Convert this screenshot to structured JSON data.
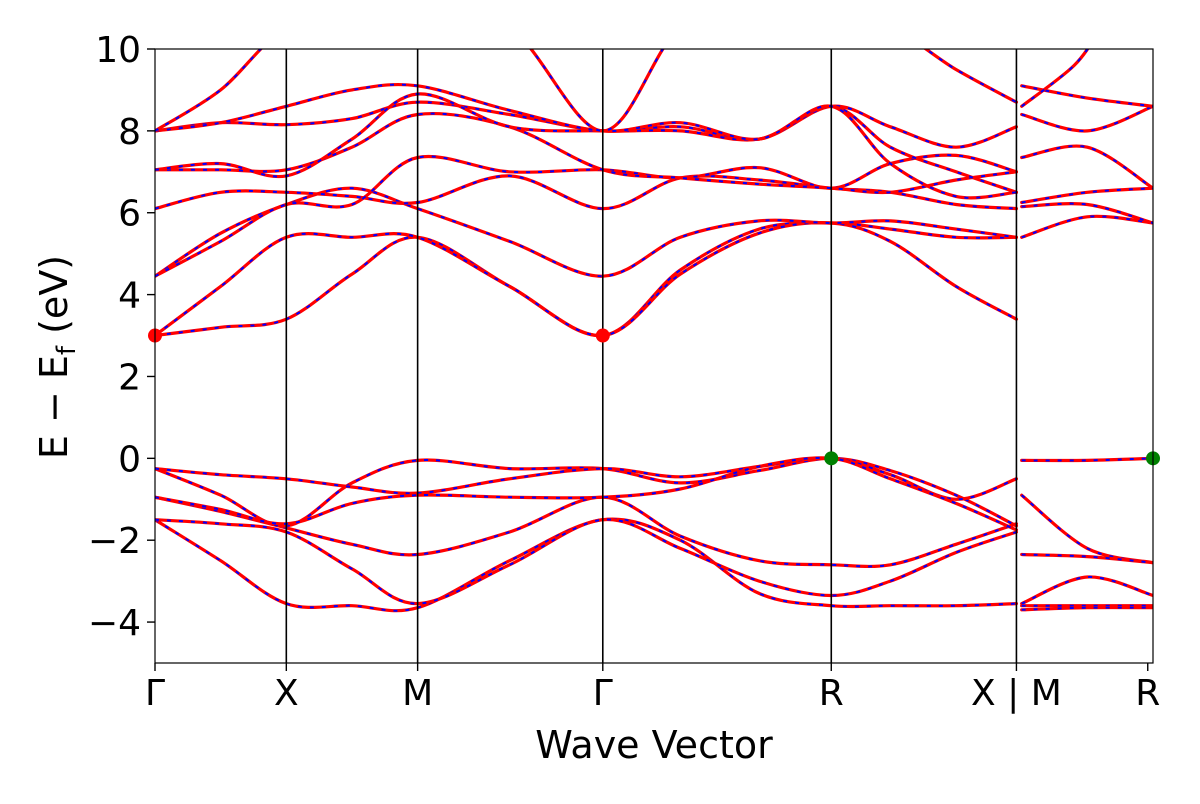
{
  "chart_data": {
    "type": "line",
    "title": "",
    "xlabel": "Wave Vector",
    "ylabel": "E − E",
    "ylabel_sub": "f",
    "ylabel_unit": " (eV)",
    "ylim": [
      -5,
      10
    ],
    "yticks": [
      -4,
      -2,
      0,
      2,
      4,
      6,
      8,
      10
    ],
    "ytick_labels": [
      "−4",
      "−2",
      "0",
      "2",
      "4",
      "6",
      "8",
      "10"
    ],
    "xlim": [
      0,
      7.6
    ],
    "xticks": [
      0,
      1.0,
      2.0,
      3.41,
      5.15,
      6.56,
      7.56
    ],
    "xtick_labels": [
      "Γ",
      "X",
      "M",
      "Γ",
      "R",
      "X | M",
      "R"
    ],
    "kpath_segments": [
      [
        0,
        1.0
      ],
      [
        1.0,
        2.0
      ],
      [
        2.0,
        3.41
      ],
      [
        3.41,
        5.15
      ],
      [
        5.15,
        6.56
      ],
      [
        6.6,
        7.6
      ]
    ],
    "grid": false,
    "legend": "none",
    "colors": {
      "band_main": "#ff0000",
      "band_overlay": "#0000ff",
      "cbm_marker": "#ff0000",
      "vbm_marker": "#008000",
      "axis": "#000000"
    },
    "markers": [
      {
        "name": "CBM",
        "points": [
          [
            0,
            3.0
          ],
          [
            3.41,
            3.0
          ]
        ],
        "color": "#ff0000"
      },
      {
        "name": "VBM",
        "points": [
          [
            5.15,
            0.0
          ],
          [
            7.6,
            0.0
          ]
        ],
        "color": "#008000"
      }
    ],
    "bands": [
      {
        "x": [
          0,
          0.5,
          1.0,
          1.5,
          2.0,
          2.7,
          3.41,
          4.0,
          4.6,
          5.15,
          5.6,
          6.1,
          6.56
        ],
        "y": [
          -1.5,
          -2.5,
          -3.55,
          -3.6,
          -3.65,
          -2.5,
          -1.5,
          -2.0,
          -3.3,
          -3.6,
          -3.6,
          -3.6,
          -3.55
        ]
      },
      {
        "x": [
          0,
          0.5,
          1.0,
          1.5,
          2.0,
          2.7,
          3.41,
          4.0,
          4.6,
          5.15,
          5.6,
          6.1,
          6.56
        ],
        "y": [
          -1.5,
          -1.6,
          -1.8,
          -2.7,
          -3.55,
          -2.6,
          -1.5,
          -2.2,
          -3.0,
          -3.35,
          -3.0,
          -2.3,
          -1.8
        ]
      },
      {
        "x": [
          0,
          0.5,
          1.0,
          1.5,
          2.0,
          2.7,
          3.41,
          4.0,
          4.6,
          5.15,
          5.6,
          6.1,
          6.56
        ],
        "y": [
          -0.95,
          -1.3,
          -1.7,
          -2.1,
          -2.35,
          -1.8,
          -0.95,
          -1.9,
          -2.5,
          -2.6,
          -2.6,
          -2.1,
          -1.6
        ]
      },
      {
        "x": [
          0,
          0.5,
          1.0,
          1.5,
          2.0,
          2.7,
          3.41,
          4.0,
          4.6,
          5.15,
          5.6,
          6.1,
          6.56
        ],
        "y": [
          -0.25,
          -0.9,
          -1.65,
          -0.6,
          -0.05,
          -0.25,
          -0.25,
          -0.6,
          -0.3,
          0.0,
          -0.3,
          -0.9,
          -1.65
        ]
      },
      {
        "x": [
          0,
          0.5,
          1.0,
          1.5,
          2.0,
          2.7,
          3.41,
          4.0,
          4.6,
          5.15,
          5.6,
          6.1,
          6.56
        ],
        "y": [
          -0.25,
          -0.4,
          -0.5,
          -0.7,
          -0.85,
          -0.5,
          -0.25,
          -0.45,
          -0.2,
          0.0,
          -0.4,
          -1.0,
          -0.5
        ]
      },
      {
        "x": [
          0,
          0.5,
          1.0,
          1.5,
          2.0,
          2.7,
          3.41,
          4.0,
          4.6,
          5.15,
          5.6,
          6.1,
          6.56
        ],
        "y": [
          -0.95,
          -1.25,
          -1.6,
          -1.1,
          -0.9,
          -0.95,
          -0.95,
          -0.75,
          -0.2,
          0.0,
          -0.5,
          -1.1,
          -1.75
        ]
      },
      {
        "x": [
          0,
          0.5,
          1.0,
          1.5,
          2.0,
          2.7,
          3.41,
          4.0,
          4.6,
          5.15,
          5.6,
          6.1,
          6.56
        ],
        "y": [
          3.0,
          3.2,
          3.4,
          4.5,
          5.4,
          4.2,
          3.0,
          4.6,
          5.6,
          5.75,
          5.6,
          5.4,
          5.4
        ]
      },
      {
        "x": [
          0,
          0.5,
          1.0,
          1.5,
          2.0,
          2.7,
          3.41,
          4.0,
          4.6,
          5.15,
          5.6,
          6.1,
          6.56
        ],
        "y": [
          3.0,
          4.2,
          5.4,
          5.4,
          5.4,
          4.2,
          3.0,
          4.5,
          5.5,
          5.75,
          5.3,
          4.2,
          3.4
        ]
      },
      {
        "x": [
          0,
          0.5,
          1.0,
          1.5,
          2.0,
          2.7,
          3.41,
          4.0,
          4.6,
          5.15,
          5.6,
          6.1,
          6.56
        ],
        "y": [
          4.45,
          5.5,
          6.2,
          6.6,
          6.1,
          5.3,
          4.45,
          5.4,
          5.8,
          5.75,
          5.8,
          5.6,
          5.4
        ]
      },
      {
        "x": [
          0,
          0.5,
          1.0,
          1.5,
          2.0,
          2.7,
          3.41,
          4.0,
          4.6,
          5.15,
          5.6,
          6.1,
          6.56
        ],
        "y": [
          6.1,
          6.5,
          6.5,
          6.4,
          6.25,
          6.9,
          6.1,
          6.85,
          6.8,
          6.6,
          6.5,
          6.2,
          6.1
        ]
      },
      {
        "x": [
          0,
          0.5,
          1.0,
          1.5,
          2.0,
          2.7,
          3.41,
          4.0,
          4.6,
          5.15,
          5.6,
          6.1,
          6.56
        ],
        "y": [
          4.45,
          5.3,
          6.2,
          6.2,
          7.35,
          7.0,
          7.05,
          6.85,
          7.1,
          6.6,
          7.2,
          7.4,
          7.0
        ]
      },
      {
        "x": [
          0,
          0.5,
          1.0,
          1.5,
          2.0,
          2.7,
          3.41,
          4.0,
          4.6,
          5.15,
          5.6,
          6.1,
          6.56
        ],
        "y": [
          7.05,
          7.05,
          7.05,
          7.6,
          8.4,
          8.1,
          7.05,
          6.85,
          6.7,
          6.6,
          6.5,
          6.8,
          7.0
        ]
      },
      {
        "x": [
          0,
          0.5,
          1.0,
          1.5,
          2.0,
          2.7,
          3.41,
          4.0,
          4.6,
          5.15,
          5.6,
          6.1,
          6.56
        ],
        "y": [
          8.0,
          8.2,
          8.15,
          8.3,
          8.7,
          8.4,
          8.0,
          8.1,
          7.8,
          8.6,
          8.1,
          7.6,
          8.1
        ]
      },
      {
        "x": [
          0,
          0.5,
          1.0,
          1.5,
          2.0,
          2.7,
          3.41,
          4.0,
          4.6,
          5.15,
          5.6,
          6.1,
          6.56
        ],
        "y": [
          7.05,
          7.2,
          6.9,
          7.8,
          8.9,
          8.1,
          8.0,
          8.0,
          7.8,
          8.6,
          7.6,
          7.0,
          6.5
        ]
      },
      {
        "x": [
          0,
          0.5,
          1.0,
          1.5,
          2.0,
          2.7,
          3.41,
          4.0,
          4.6,
          5.15,
          5.6,
          6.1,
          6.56
        ],
        "y": [
          8.0,
          8.2,
          8.6,
          9.0,
          9.1,
          8.5,
          8.0,
          8.2,
          7.8,
          8.6,
          7.2,
          6.4,
          6.5
        ]
      },
      {
        "x": [
          0,
          0.5,
          1.0,
          1.5,
          2.0,
          2.7,
          3.41,
          4.0,
          4.6,
          5.15,
          5.6,
          6.1,
          6.56
        ],
        "y": [
          8.0,
          9.0,
          10.5,
          10.5,
          10.5,
          10.5,
          8.0,
          10.5,
          10.5,
          10.5,
          10.5,
          9.5,
          8.7
        ]
      },
      {
        "x": [
          6.6,
          7.1,
          7.6
        ],
        "y": [
          -0.05,
          -0.05,
          0.0
        ]
      },
      {
        "x": [
          6.6,
          7.1,
          7.6
        ],
        "y": [
          -0.9,
          -2.2,
          -2.55
        ]
      },
      {
        "x": [
          6.6,
          7.1,
          7.6
        ],
        "y": [
          -2.35,
          -2.4,
          -2.55
        ]
      },
      {
        "x": [
          6.6,
          7.1,
          7.6
        ],
        "y": [
          -3.55,
          -2.9,
          -3.35
        ]
      },
      {
        "x": [
          6.6,
          7.1,
          7.6
        ],
        "y": [
          -3.6,
          -3.6,
          -3.6
        ]
      },
      {
        "x": [
          6.6,
          7.1,
          7.6
        ],
        "y": [
          -3.7,
          -3.65,
          -3.65
        ]
      },
      {
        "x": [
          6.6,
          7.1,
          7.6
        ],
        "y": [
          5.4,
          5.9,
          5.75
        ]
      },
      {
        "x": [
          6.6,
          7.1,
          7.6
        ],
        "y": [
          6.15,
          6.2,
          5.75
        ]
      },
      {
        "x": [
          6.6,
          7.1,
          7.6
        ],
        "y": [
          6.25,
          6.5,
          6.6
        ]
      },
      {
        "x": [
          6.6,
          7.1,
          7.6
        ],
        "y": [
          7.35,
          7.6,
          6.6
        ]
      },
      {
        "x": [
          6.6,
          7.1,
          7.6
        ],
        "y": [
          8.4,
          8.0,
          8.6
        ]
      },
      {
        "x": [
          6.6,
          7.1,
          7.6
        ],
        "y": [
          9.1,
          8.8,
          8.6
        ]
      },
      {
        "x": [
          6.6,
          7.0,
          7.2
        ],
        "y": [
          8.6,
          9.6,
          10.5
        ]
      }
    ]
  }
}
